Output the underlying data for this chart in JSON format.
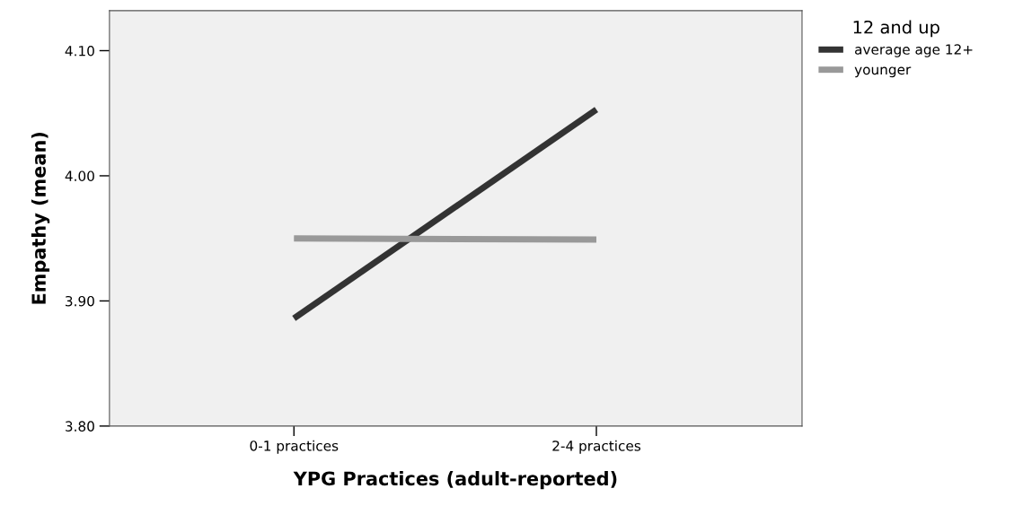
{
  "chart_data": {
    "type": "line",
    "xlabel": "YPG Practices (adult-reported)",
    "ylabel": "Empathy (mean)",
    "legend_title": "12 and up",
    "categories": [
      "0-1 practices",
      "2-4 practices"
    ],
    "series": [
      {
        "name": "average age 12+",
        "color": "#333333",
        "values": [
          3.886,
          4.053
        ]
      },
      {
        "name": "younger",
        "color": "#999999",
        "values": [
          3.95,
          3.949
        ]
      }
    ],
    "ylim": [
      3.8,
      4.132
    ],
    "yticks": [
      {
        "value": 3.8,
        "label": "3.80"
      },
      {
        "value": 3.9,
        "label": "3.90"
      },
      {
        "value": 4.0,
        "label": "4.00"
      },
      {
        "value": 4.1,
        "label": "4.10"
      }
    ],
    "grid": false,
    "legend": "top right",
    "marker": "none",
    "line_style": "solid"
  }
}
